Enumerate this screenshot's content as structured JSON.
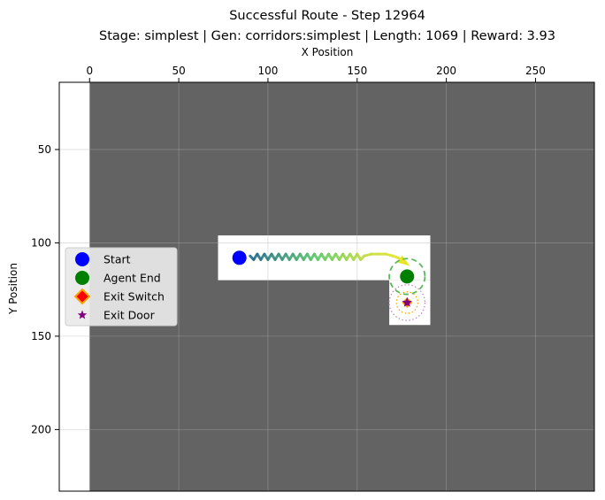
{
  "chart_data": {
    "type": "scatter",
    "title": "Successful Route - Step 12964",
    "subtitle": "Stage: simplest | Gen: corridors:simplest | Length: 1069 | Reward: 3.93",
    "xlabel": "X Position",
    "ylabel": "Y Position",
    "xlim": [
      -17,
      283
    ],
    "ylim": [
      233,
      14
    ],
    "x_axis_position": "top",
    "y_inverted": true,
    "grid": true,
    "x_ticks": [
      0,
      50,
      100,
      150,
      200,
      250
    ],
    "y_ticks": [
      50,
      100,
      150,
      200
    ],
    "colors": {
      "background": "#ffffff",
      "walls": "#636363",
      "floor": "#ffffff",
      "start": "#0000ff",
      "agent_end": "#008000",
      "exit_switch_fill": "#ff0000",
      "exit_switch_edge": "#ffa500",
      "exit_door": "#800080",
      "trajectory_start": "#1f6b8c",
      "trajectory_mid": "#5fc86a",
      "trajectory_end": "#e8e42a"
    },
    "regions": [
      {
        "name": "wall-area",
        "x": [
          0,
          283
        ],
        "y": [
          14,
          233
        ],
        "color": "#636363"
      },
      {
        "name": "corridor",
        "x": [
          72,
          191
        ],
        "y": [
          96,
          120
        ],
        "color": "#ffffff"
      },
      {
        "name": "exit-room",
        "x": [
          168,
          191
        ],
        "y": [
          120,
          144
        ],
        "color": "#ffffff"
      }
    ],
    "markers": {
      "start": {
        "x": 84,
        "y": 108
      },
      "agent_end": {
        "x": 178,
        "y": 118
      },
      "exit_switch": {
        "x": 178,
        "y": 132
      },
      "exit_door": {
        "x": 178,
        "y": 132
      }
    },
    "trajectory": [
      {
        "x": 90,
        "y": 107
      },
      {
        "x": 92,
        "y": 109
      },
      {
        "x": 94,
        "y": 106
      },
      {
        "x": 96,
        "y": 109
      },
      {
        "x": 98,
        "y": 106
      },
      {
        "x": 100,
        "y": 109
      },
      {
        "x": 102,
        "y": 106
      },
      {
        "x": 104,
        "y": 109
      },
      {
        "x": 106,
        "y": 106
      },
      {
        "x": 108,
        "y": 109
      },
      {
        "x": 110,
        "y": 106
      },
      {
        "x": 112,
        "y": 109
      },
      {
        "x": 114,
        "y": 106
      },
      {
        "x": 116,
        "y": 109
      },
      {
        "x": 118,
        "y": 106
      },
      {
        "x": 120,
        "y": 109
      },
      {
        "x": 122,
        "y": 106
      },
      {
        "x": 124,
        "y": 109
      },
      {
        "x": 126,
        "y": 106
      },
      {
        "x": 128,
        "y": 109
      },
      {
        "x": 130,
        "y": 106
      },
      {
        "x": 132,
        "y": 109
      },
      {
        "x": 134,
        "y": 106
      },
      {
        "x": 136,
        "y": 109
      },
      {
        "x": 138,
        "y": 106
      },
      {
        "x": 140,
        "y": 109
      },
      {
        "x": 142,
        "y": 106
      },
      {
        "x": 144,
        "y": 109
      },
      {
        "x": 146,
        "y": 106
      },
      {
        "x": 148,
        "y": 109
      },
      {
        "x": 150,
        "y": 106
      },
      {
        "x": 152,
        "y": 109
      },
      {
        "x": 154,
        "y": 107
      },
      {
        "x": 158,
        "y": 106
      },
      {
        "x": 162,
        "y": 106
      },
      {
        "x": 166,
        "y": 106
      },
      {
        "x": 170,
        "y": 107
      },
      {
        "x": 173,
        "y": 108
      },
      {
        "x": 176,
        "y": 110
      }
    ],
    "target_circles": [
      {
        "name": "agent-end-radius",
        "x": 178,
        "y": 118,
        "r": 10,
        "color": "#5cb85c",
        "style": "dashed"
      },
      {
        "name": "switch-radius",
        "x": 178,
        "y": 132,
        "r": 6,
        "color": "#ffa500",
        "style": "dotted"
      },
      {
        "name": "door-radius",
        "x": 178,
        "y": 132,
        "r": 10,
        "color": "#c08ac0",
        "style": "dotted"
      }
    ],
    "legend": {
      "position": "center-left",
      "entries": [
        {
          "label": "Start",
          "marker": "circle",
          "color": "#0000ff"
        },
        {
          "label": "Agent End",
          "marker": "circle",
          "color": "#008000"
        },
        {
          "label": "Exit Switch",
          "marker": "diamond",
          "color": "#ff0000"
        },
        {
          "label": "Exit Door",
          "marker": "star",
          "color": "#800080"
        }
      ]
    }
  }
}
